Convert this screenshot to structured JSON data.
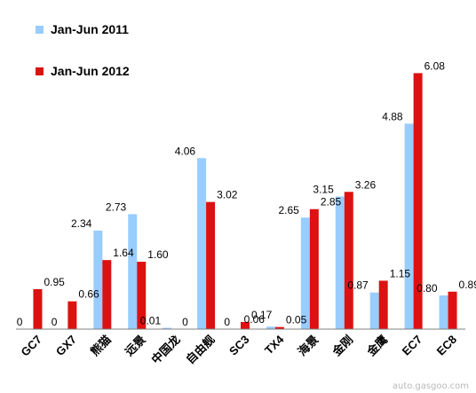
{
  "chart_data": {
    "type": "bar",
    "categories": [
      "GC7",
      "GX7",
      "熊猫",
      "远景",
      "中国龙",
      "自由舰",
      "SC3",
      "TX4",
      "海景",
      "金刚",
      "金鹰",
      "EC7",
      "EC8"
    ],
    "series": [
      {
        "name": "Jan-Jun 2011",
        "color": "#99ccff",
        "values": [
          0,
          0,
          2.34,
          2.73,
          0.01,
          4.06,
          0,
          0.06,
          2.65,
          3.15,
          0.87,
          4.88,
          0.8
        ],
        "labels": [
          "0",
          "0",
          "2.34",
          "2.73",
          "0.01",
          "4.06",
          "0",
          "0.06",
          "2.65",
          "3.15",
          "0.87",
          "4.88",
          "0.80"
        ]
      },
      {
        "name": "Jan-Jun 2012",
        "color": "#dd1111",
        "values": [
          0.95,
          0.66,
          1.64,
          1.6,
          0,
          3.02,
          0.17,
          0.05,
          2.85,
          3.26,
          1.15,
          6.08,
          0.89
        ],
        "labels": [
          "0.95",
          "0.66",
          "1.64",
          "1.60",
          "0",
          "3.02",
          "0.17",
          "0.05",
          "2.85",
          "3.26",
          "1.15",
          "6.08",
          "0.89"
        ]
      }
    ],
    "ylim": [
      0,
      6.3
    ],
    "grid": false,
    "legend": "top-left"
  },
  "watermark": "auto.gasgoo.com"
}
